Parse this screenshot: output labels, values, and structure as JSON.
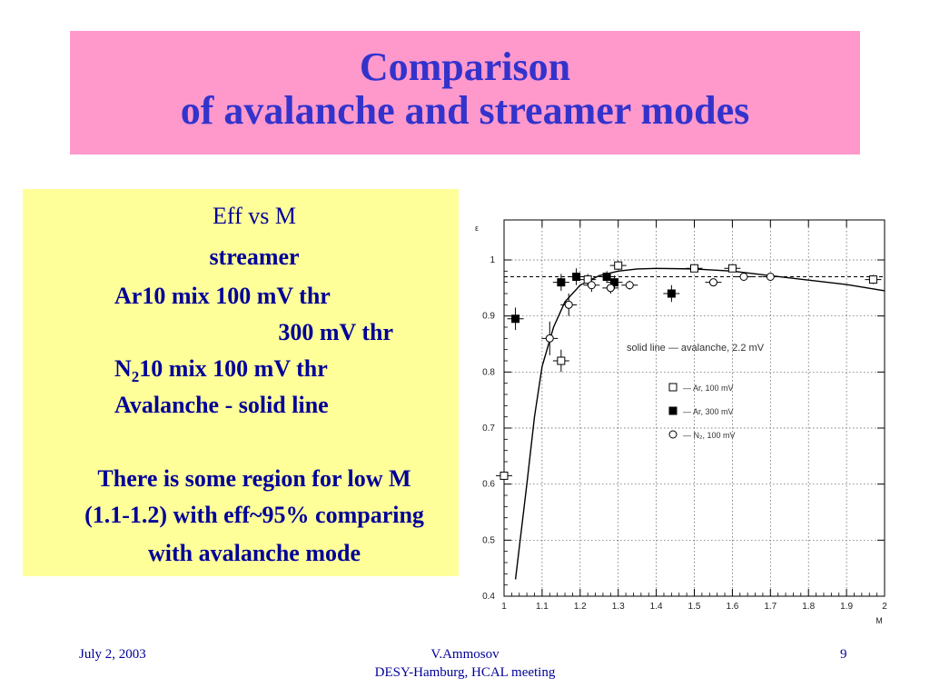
{
  "title": {
    "line1": "Comparison",
    "line2": "of avalanche and  streamer modes"
  },
  "textbox": {
    "line1": "Eff  vs M",
    "line2": "streamer",
    "line3": "Ar10 mix 100 mV thr",
    "line4": "300 mV thr",
    "line5_pre": "N",
    "line5_sub": "2",
    "line5_post": "10 mix 100 mV thr",
    "line6": "Avalanche - solid line",
    "line7": "There is some region for low M",
    "line8": "(1.1-1.2) with eff~95% comparing",
    "line9": "with avalanche mode"
  },
  "footer": {
    "date": "July 2, 2003",
    "author": "V.Ammosov",
    "meeting": "DESY-Hamburg,  HCAL  meeting",
    "page": "9"
  },
  "chart_data": {
    "type": "scatter",
    "xlabel": "M",
    "ylabel": "ε",
    "xlim": [
      1.0,
      2.0
    ],
    "ylim": [
      0.4,
      1.05
    ],
    "xticks": [
      1,
      1.1,
      1.2,
      1.3,
      1.4,
      1.5,
      1.6,
      1.7,
      1.8,
      1.9,
      2
    ],
    "xticklabels": [
      "1",
      "1.1",
      "1.2",
      "1.3",
      "1.4",
      "1.5",
      "1.6",
      "1.7",
      "1.8",
      "1.9",
      "2"
    ],
    "yticks": [
      0.4,
      0.5,
      0.6,
      0.7,
      0.8,
      0.9,
      1
    ],
    "yticklabels": [
      "0.4",
      "0.5",
      "0.6",
      "0.7",
      "0.8",
      "0.9",
      "1"
    ],
    "grid": true,
    "annotation": "solid line — avalanche, 2.2 mV",
    "reference_line": {
      "y": 0.97,
      "style": "dashed"
    },
    "legend": [
      {
        "label": "— Ar, 100 mV",
        "marker": "open-square"
      },
      {
        "label": "— Ar, 300 mV",
        "marker": "filled-square"
      },
      {
        "label": "— N₂, 100 mV",
        "marker": "open-circle"
      }
    ],
    "series": [
      {
        "name": "Ar, 100 mV",
        "marker": "open-square",
        "points": [
          [
            1.0,
            0.615
          ],
          [
            1.15,
            0.82
          ],
          [
            1.22,
            0.965
          ],
          [
            1.3,
            0.99
          ],
          [
            1.5,
            0.985
          ],
          [
            1.6,
            0.985
          ],
          [
            1.97,
            0.965
          ]
        ],
        "yerr": [
          0.04,
          0.02,
          0.01,
          0.008,
          0.006,
          0.006,
          0.008
        ]
      },
      {
        "name": "Ar, 300 mV",
        "marker": "filled-square",
        "points": [
          [
            1.03,
            0.895
          ],
          [
            1.15,
            0.96
          ],
          [
            1.19,
            0.97
          ],
          [
            1.27,
            0.97
          ],
          [
            1.29,
            0.96
          ],
          [
            1.44,
            0.94
          ]
        ],
        "yerr": [
          0.02,
          0.015,
          0.015,
          0.01,
          0.012,
          0.015
        ]
      },
      {
        "name": "N₂, 100 mV",
        "marker": "open-circle",
        "points": [
          [
            1.12,
            0.86
          ],
          [
            1.17,
            0.92
          ],
          [
            1.23,
            0.955
          ],
          [
            1.28,
            0.95
          ],
          [
            1.33,
            0.955
          ],
          [
            1.55,
            0.96
          ],
          [
            1.63,
            0.97
          ],
          [
            1.7,
            0.97
          ]
        ],
        "yerr": [
          0.03,
          0.02,
          0.012,
          0.01,
          0.008,
          0.006,
          0.006,
          0.006
        ]
      },
      {
        "name": "avalanche, 2.2 mV",
        "marker": "line",
        "points": [
          [
            1.03,
            0.43
          ],
          [
            1.06,
            0.6
          ],
          [
            1.08,
            0.72
          ],
          [
            1.1,
            0.81
          ],
          [
            1.13,
            0.88
          ],
          [
            1.16,
            0.925
          ],
          [
            1.2,
            0.955
          ],
          [
            1.25,
            0.972
          ],
          [
            1.3,
            0.98
          ],
          [
            1.35,
            0.984
          ],
          [
            1.4,
            0.985
          ],
          [
            1.5,
            0.984
          ],
          [
            1.6,
            0.98
          ],
          [
            1.7,
            0.972
          ],
          [
            1.8,
            0.964
          ],
          [
            1.9,
            0.956
          ],
          [
            2.0,
            0.945
          ]
        ]
      }
    ]
  }
}
